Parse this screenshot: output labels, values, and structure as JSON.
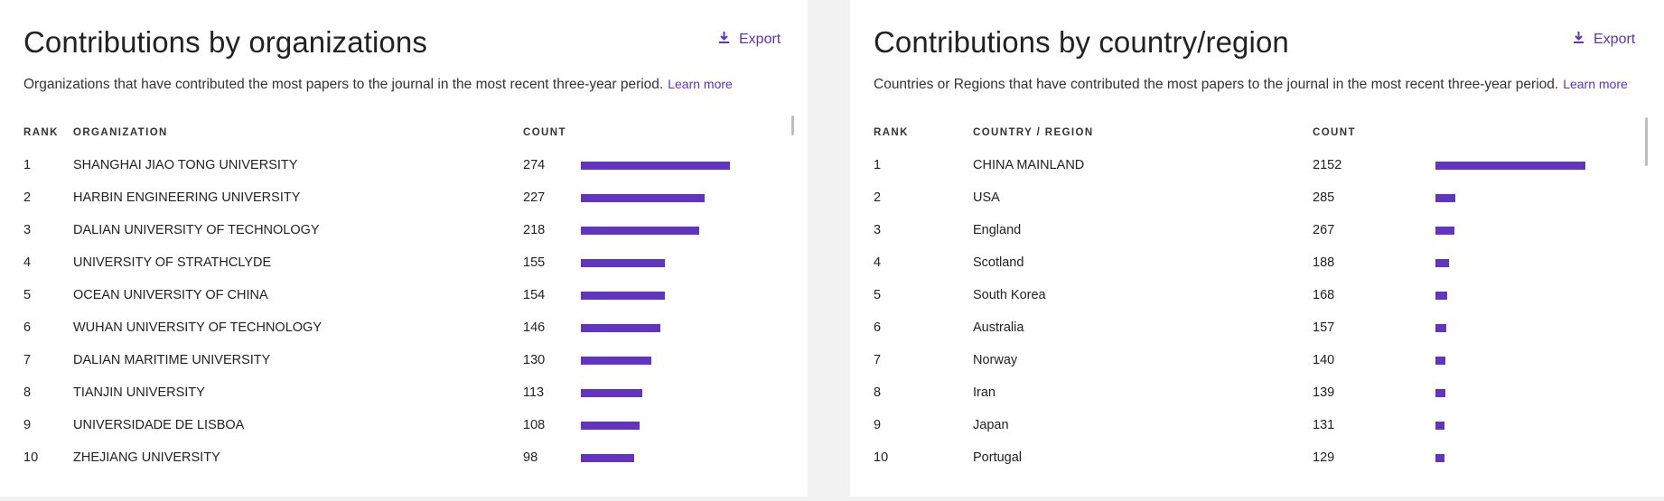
{
  "organizations": {
    "title": "Contributions by organizations",
    "export_label": "Export",
    "description": "Organizations that have contributed the most papers to the journal in the most recent three-year period.",
    "learn_more": "Learn more",
    "columns": {
      "rank": "RANK",
      "name": "ORGANIZATION",
      "count": "COUNT"
    },
    "max": 274,
    "rows": [
      {
        "rank": "1",
        "name": "SHANGHAI JIAO TONG UNIVERSITY",
        "count": 274
      },
      {
        "rank": "2",
        "name": "HARBIN ENGINEERING UNIVERSITY",
        "count": 227
      },
      {
        "rank": "3",
        "name": "DALIAN UNIVERSITY OF TECHNOLOGY",
        "count": 218
      },
      {
        "rank": "4",
        "name": "UNIVERSITY OF STRATHCLYDE",
        "count": 155
      },
      {
        "rank": "5",
        "name": "OCEAN UNIVERSITY OF CHINA",
        "count": 154
      },
      {
        "rank": "6",
        "name": "WUHAN UNIVERSITY OF TECHNOLOGY",
        "count": 146
      },
      {
        "rank": "7",
        "name": "DALIAN MARITIME UNIVERSITY",
        "count": 130
      },
      {
        "rank": "8",
        "name": "TIANJIN UNIVERSITY",
        "count": 113
      },
      {
        "rank": "9",
        "name": "UNIVERSIDADE DE LISBOA",
        "count": 108
      },
      {
        "rank": "10",
        "name": "ZHEJIANG UNIVERSITY",
        "count": 98
      }
    ]
  },
  "countries": {
    "title": "Contributions by country/region",
    "export_label": "Export",
    "description": "Countries or Regions that have contributed the most papers to the journal in the most recent three-year period.",
    "learn_more": "Learn more",
    "columns": {
      "rank": "RANK",
      "name": "COUNTRY / REGION",
      "count": "COUNT"
    },
    "max": 2152,
    "rows": [
      {
        "rank": "1",
        "name": "CHINA MAINLAND",
        "count": 2152
      },
      {
        "rank": "2",
        "name": "USA",
        "count": 285
      },
      {
        "rank": "3",
        "name": "England",
        "count": 267
      },
      {
        "rank": "4",
        "name": "Scotland",
        "count": 188
      },
      {
        "rank": "5",
        "name": "South Korea",
        "count": 168
      },
      {
        "rank": "6",
        "name": "Australia",
        "count": 157
      },
      {
        "rank": "7",
        "name": "Norway",
        "count": 140
      },
      {
        "rank": "8",
        "name": "Iran",
        "count": 139
      },
      {
        "rank": "9",
        "name": "Japan",
        "count": 131
      },
      {
        "rank": "10",
        "name": "Portugal",
        "count": 129
      }
    ]
  },
  "accent_color": "#6134c2",
  "link_color": "#5e33bf",
  "icons": {
    "export": "download-icon"
  }
}
